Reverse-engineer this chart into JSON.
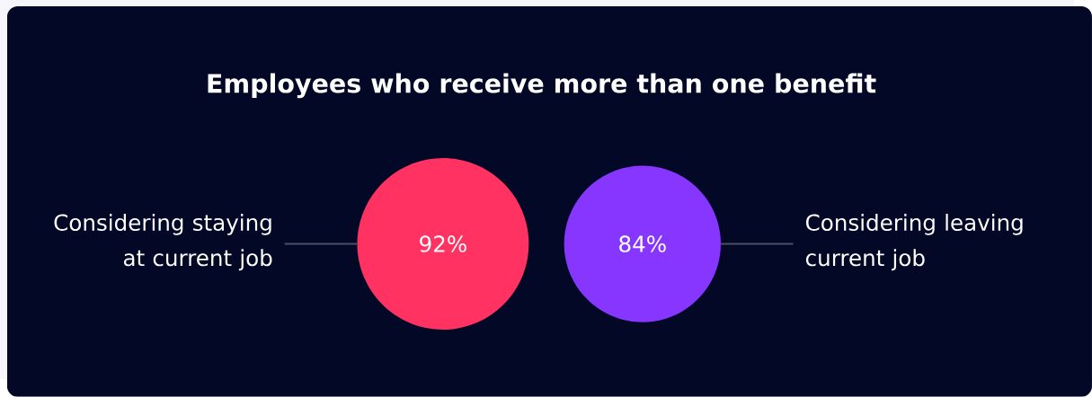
{
  "chart_data": {
    "type": "other",
    "title": "Employees who receive more than one benefit",
    "categories": [
      "Considering staying at current job",
      "Considering leaving current job"
    ],
    "values": [
      92,
      84
    ],
    "value_labels": [
      "92%",
      "84%"
    ],
    "colors": [
      "#ff3262",
      "#8636ff"
    ]
  }
}
